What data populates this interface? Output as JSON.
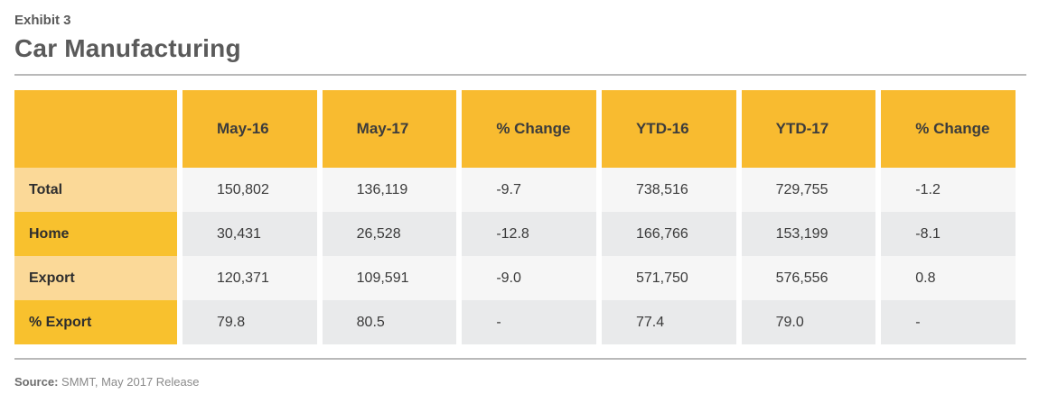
{
  "header": {
    "exhibit": "Exhibit 3",
    "title": "Car Manufacturing"
  },
  "table": {
    "columns": [
      "",
      "May-16",
      "May-17",
      "% Change",
      "YTD-16",
      "YTD-17",
      "% Change"
    ],
    "rows": [
      {
        "label": "Total",
        "cells": [
          "150,802",
          "136,119",
          "-9.7",
          "738,516",
          "729,755",
          "-1.2"
        ]
      },
      {
        "label": "Home",
        "cells": [
          "30,431",
          "26,528",
          "-12.8",
          "166,766",
          "153,199",
          "-8.1"
        ]
      },
      {
        "label": "Export",
        "cells": [
          "120,371",
          "109,591",
          "-9.0",
          "571,750",
          "576,556",
          "0.8"
        ]
      },
      {
        "label": "% Export",
        "cells": [
          "79.8",
          "80.5",
          "-",
          "77.4",
          "79.0",
          "-"
        ]
      }
    ]
  },
  "footer": {
    "source_label": "Source:",
    "source_text": "SMMT, May 2017 Release"
  },
  "colors": {
    "header_fill": "#f8bb30",
    "row_label_light": "#fbd998",
    "row_label_dark": "#f8c12e",
    "row_light": "#f6f6f6",
    "row_dark": "#e9eaeb"
  }
}
